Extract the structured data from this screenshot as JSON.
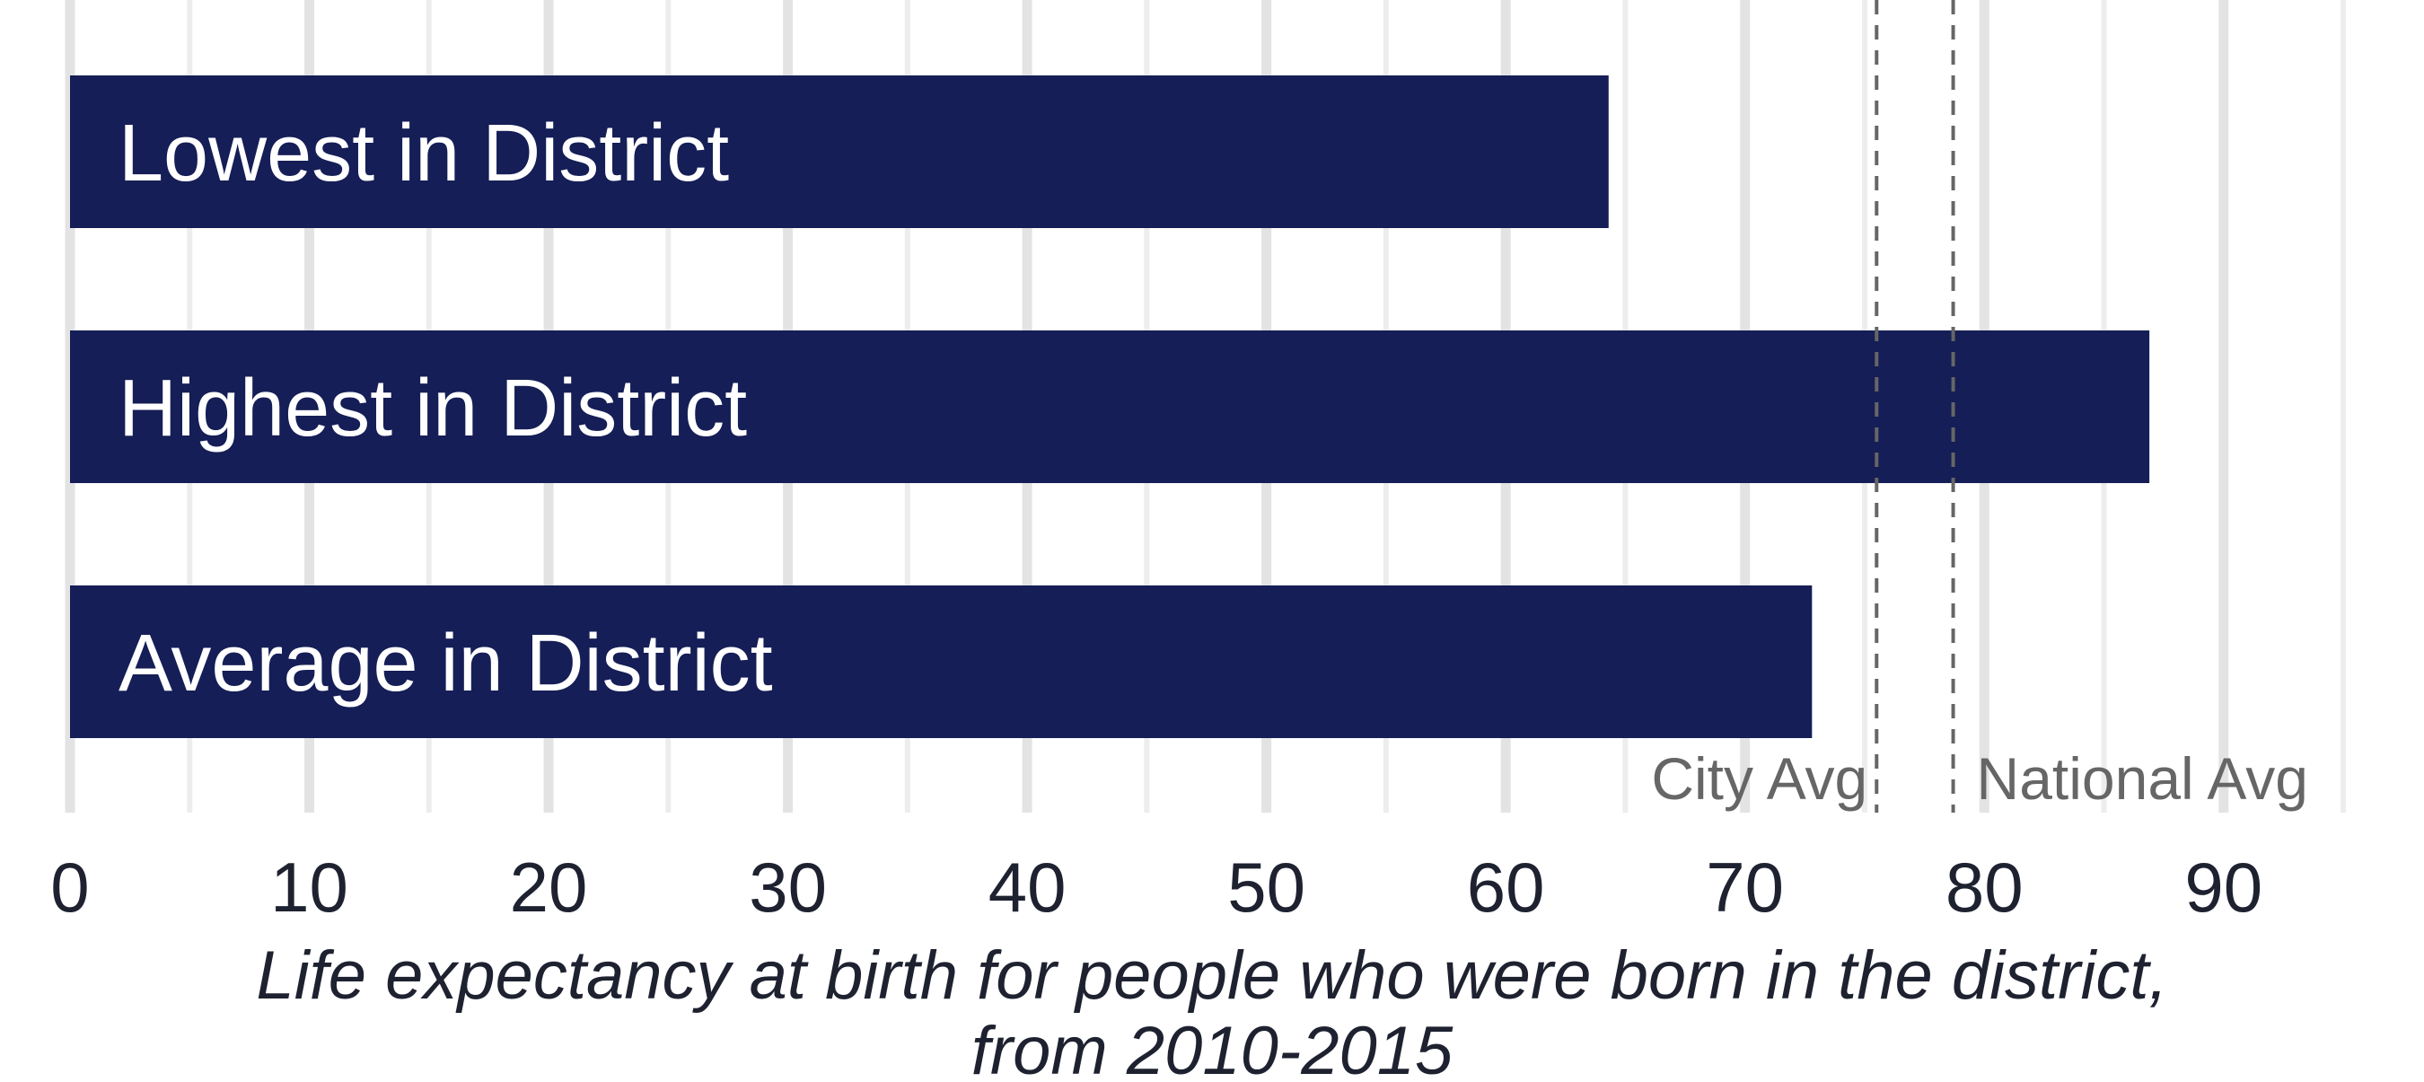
{
  "chart_data": {
    "type": "bar",
    "orientation": "horizontal",
    "categories": [
      "Lowest in District",
      "Highest in District",
      "Average in District"
    ],
    "values": [
      64.3,
      86.9,
      72.8
    ],
    "bar_color": "#151e56",
    "xlim": [
      0,
      95
    ],
    "xticks": [
      0,
      10,
      20,
      30,
      40,
      50,
      60,
      70,
      80,
      90
    ],
    "grid": true,
    "reference_lines": [
      {
        "label": "City Avg",
        "value": 75.5,
        "color": "#666666",
        "style": "dashed"
      },
      {
        "label": "National Avg",
        "value": 78.7,
        "color": "#666666",
        "style": "dashed"
      }
    ],
    "xlabel_lines": [
      "Life expectancy at birth for people who were born in the district,",
      "from 2010-2015"
    ]
  }
}
